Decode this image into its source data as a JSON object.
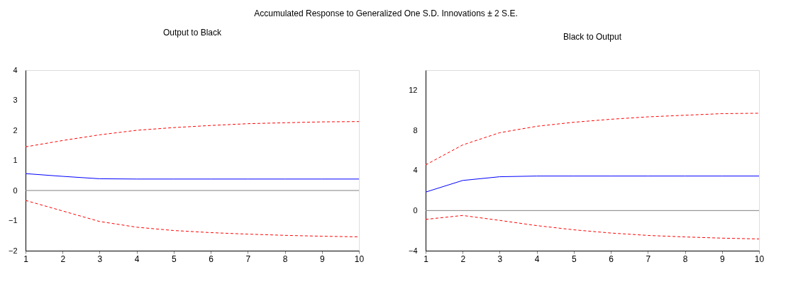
{
  "chart_data": [
    {
      "type": "line",
      "title": "Accumulated Response to Generalized One S.D. Innovations ± 2 S.E.",
      "subtitle": "Output to Black",
      "x": [
        1,
        2,
        3,
        4,
        5,
        6,
        7,
        8,
        9,
        10
      ],
      "xlim": [
        1,
        10
      ],
      "xticks": [
        1,
        2,
        3,
        4,
        5,
        6,
        7,
        8,
        9,
        10
      ],
      "ylim": [
        -2,
        4
      ],
      "yticks": [
        -2,
        -1,
        0,
        1,
        2,
        3,
        4
      ],
      "grid": false,
      "marker": "none",
      "ref_lines": [
        {
          "axis": "y",
          "value": 0,
          "color": "#808080"
        }
      ],
      "series": [
        {
          "color": "#0000ff",
          "line_style": "solid",
          "values": [
            0.56,
            0.47,
            0.39,
            0.38,
            0.38,
            0.38,
            0.38,
            0.38,
            0.38,
            0.38
          ]
        },
        {
          "color": "#ff0000",
          "line_style": "dashed",
          "values": [
            1.45,
            1.66,
            1.85,
            2.0,
            2.09,
            2.16,
            2.22,
            2.25,
            2.28,
            2.29
          ]
        },
        {
          "color": "#ff0000",
          "line_style": "dashed",
          "values": [
            -0.33,
            -0.68,
            -1.03,
            -1.22,
            -1.33,
            -1.4,
            -1.45,
            -1.49,
            -1.52,
            -1.54
          ]
        }
      ]
    },
    {
      "type": "line",
      "subtitle": "Black to Output",
      "x": [
        1,
        2,
        3,
        4,
        5,
        6,
        7,
        8,
        9,
        10
      ],
      "xlim": [
        1,
        10
      ],
      "xticks": [
        1,
        2,
        3,
        4,
        5,
        6,
        7,
        8,
        9,
        10
      ],
      "ylim": [
        -4,
        14
      ],
      "yticks": [
        -4,
        0,
        4,
        8,
        12
      ],
      "grid": false,
      "marker": "none",
      "ref_lines": [
        {
          "axis": "y",
          "value": 0,
          "color": "#808080"
        }
      ],
      "series": [
        {
          "color": "#0000ff",
          "line_style": "solid",
          "values": [
            1.84,
            3.0,
            3.37,
            3.44,
            3.44,
            3.44,
            3.44,
            3.44,
            3.44,
            3.44
          ]
        },
        {
          "color": "#ff0000",
          "line_style": "dashed",
          "values": [
            4.55,
            6.54,
            7.76,
            8.4,
            8.8,
            9.1,
            9.34,
            9.5,
            9.66,
            9.7
          ]
        },
        {
          "color": "#ff0000",
          "line_style": "dashed",
          "values": [
            -0.88,
            -0.49,
            -0.98,
            -1.5,
            -1.92,
            -2.24,
            -2.48,
            -2.63,
            -2.75,
            -2.83
          ]
        }
      ]
    }
  ]
}
